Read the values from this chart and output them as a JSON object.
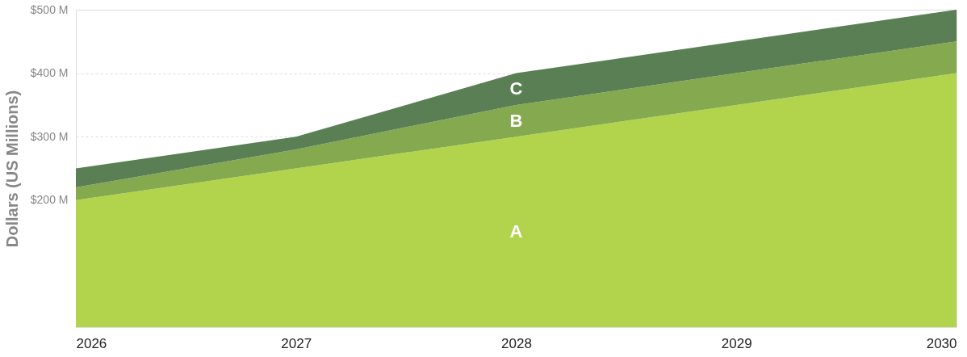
{
  "chart_data": {
    "type": "area",
    "stacked": true,
    "ylabel": "Dollars (US Millions)",
    "x": [
      2026,
      2027,
      2028,
      2029,
      2030
    ],
    "xlim": [
      2026,
      2030
    ],
    "xticks": [
      2026,
      2027,
      2028,
      2029,
      2030
    ],
    "ylim": [
      0,
      500
    ],
    "yticks": [
      {
        "value": 200,
        "label": "$200 M"
      },
      {
        "value": 300,
        "label": "$300 M"
      },
      {
        "value": 400,
        "label": "$400 M"
      },
      {
        "value": 500,
        "label": "$500 M"
      }
    ],
    "grid": "y",
    "legend": false,
    "series": [
      {
        "name": "A",
        "color": "#b2d44c",
        "values": [
          200,
          250,
          300,
          350,
          400
        ]
      },
      {
        "name": "B",
        "color": "#84a94e",
        "values": [
          20,
          30,
          50,
          50,
          50
        ]
      },
      {
        "name": "C",
        "color": "#5a7f55",
        "values": [
          30,
          20,
          50,
          50,
          50
        ]
      }
    ]
  }
}
